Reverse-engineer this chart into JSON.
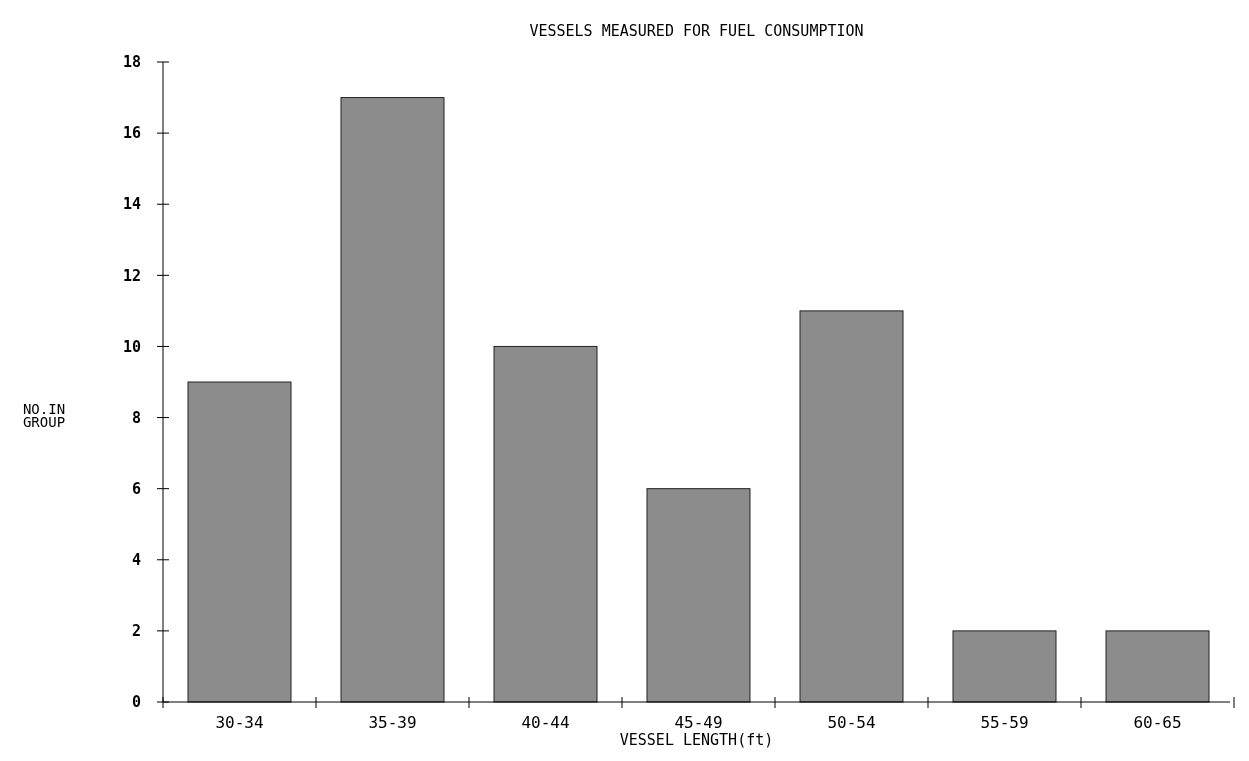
{
  "chart_data": {
    "type": "bar",
    "title": "VESSELS MEASURED FOR FUEL CONSUMPTION",
    "xlabel": "VESSEL LENGTH(ft)",
    "ylabel": "NO.IN GROUP",
    "categories": [
      "30-34",
      "35-39",
      "40-44",
      "45-49",
      "50-54",
      "55-59",
      "60-65"
    ],
    "values": [
      9,
      17,
      10,
      6,
      11,
      2,
      2
    ],
    "color": "#8c8c8c",
    "ylim": [
      0,
      18
    ],
    "yticks": [
      0,
      2,
      4,
      6,
      8,
      10,
      12,
      14,
      16,
      18
    ],
    "grid": false
  }
}
